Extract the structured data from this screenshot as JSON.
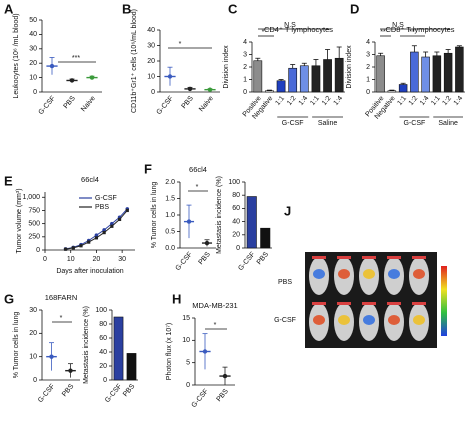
{
  "chart_data": [
    {
      "panel": "A",
      "type": "dot",
      "ylabel": "Leukocytes (10⁶ /mL blood)",
      "categories": [
        "G-CSF",
        "PBS",
        "Naive"
      ],
      "values": [
        18,
        8,
        10
      ],
      "errors": [
        6,
        1,
        1
      ],
      "colors": [
        "#3a5bbf",
        "#222222",
        "#3a9a3a"
      ],
      "ylim": [
        0,
        50
      ],
      "yticks": [
        0,
        10,
        20,
        30,
        40,
        50
      ],
      "annotations": [
        "***"
      ]
    },
    {
      "panel": "B",
      "type": "dot",
      "ylabel": "CD11b⁺Gr1⁺ cells (10⁶/mL blood)",
      "categories": [
        "G-CSF",
        "PBS",
        "Naive"
      ],
      "values": [
        10,
        2,
        1.5
      ],
      "errors": [
        6,
        1,
        0.5
      ],
      "colors": [
        "#3a5bbf",
        "#222222",
        "#3a9a3a"
      ],
      "ylim": [
        0,
        40
      ],
      "yticks": [
        0,
        10,
        20,
        30,
        40
      ],
      "annotations": [
        "*"
      ]
    },
    {
      "panel": "C",
      "type": "bar",
      "title": "CD4⁺ T lymphocytes",
      "ylabel": "Division index",
      "categories": [
        "Positive",
        "Negative",
        "1:1",
        "1:2",
        "1:4",
        "1:1",
        "1:2",
        "1:4"
      ],
      "values": [
        2.5,
        0.1,
        0.9,
        1.9,
        2.1,
        2.1,
        2.6,
        2.7
      ],
      "errors": [
        0.2,
        0.05,
        0.1,
        0.3,
        0.2,
        0.5,
        0.8,
        0.9
      ],
      "colors": [
        "#8c8c8c",
        "#ffffff",
        "#1f3fbf",
        "#4a6ad8",
        "#6f8fe6",
        "#222222",
        "#222222",
        "#222222"
      ],
      "groups": [
        "G-CSF",
        "Saline"
      ],
      "ylim": [
        0,
        4
      ],
      "yticks": [
        0,
        1,
        2,
        3,
        4
      ],
      "annotations": [
        "N.S",
        "*"
      ]
    },
    {
      "panel": "D",
      "type": "bar",
      "title": "CD8⁺ T lymphocytes",
      "ylabel": "Division index",
      "categories": [
        "Positive",
        "Negative",
        "1:1",
        "1:2",
        "1:4",
        "1:1",
        "1:2",
        "1:4"
      ],
      "values": [
        2.9,
        0.1,
        0.6,
        3.2,
        2.8,
        2.9,
        3.1,
        3.6
      ],
      "errors": [
        0.2,
        0.05,
        0.1,
        0.5,
        0.4,
        0.3,
        0.3,
        0.1
      ],
      "colors": [
        "#8c8c8c",
        "#ffffff",
        "#1f3fbf",
        "#4a6ad8",
        "#6f8fe6",
        "#222222",
        "#222222",
        "#222222"
      ],
      "groups": [
        "G-CSF",
        "Saline"
      ],
      "ylim": [
        0,
        4
      ],
      "yticks": [
        0,
        1,
        2,
        3,
        4
      ],
      "annotations": [
        "N.S",
        "**",
        "**"
      ]
    },
    {
      "panel": "E",
      "type": "line",
      "title": "66cl4",
      "ylabel": "Tumor volume (mm³)",
      "xlabel": "Days after inoculation",
      "x": [
        8,
        11,
        14,
        17,
        20,
        23,
        26,
        29,
        32
      ],
      "series": [
        {
          "name": "G-CSF",
          "color": "#2a3fa0",
          "values": [
            20,
            50,
            100,
            180,
            280,
            380,
            500,
            620,
            780
          ]
        },
        {
          "name": "PBS",
          "color": "#222222",
          "values": [
            15,
            40,
            80,
            150,
            230,
            330,
            450,
            580,
            750
          ]
        }
      ],
      "xlim": [
        0,
        35
      ],
      "xticks": [
        0,
        10,
        20,
        30
      ],
      "ylim": [
        0,
        1100
      ],
      "yticks": [
        0,
        250,
        500,
        750,
        {
          "value": 1000,
          "label": "1,000"
        }
      ]
    },
    {
      "panel": "F",
      "type": "dot",
      "title": "66cl4",
      "ylabel": "% Tumor cells in lung",
      "categories": [
        "G-CSF",
        "PBS"
      ],
      "values": [
        0.8,
        0.15
      ],
      "errors": [
        0.5,
        0.1
      ],
      "colors": [
        "#3a5bbf",
        "#222222"
      ],
      "ylim": [
        0,
        2
      ],
      "yticks": [
        {
          "value": 0,
          "label": "0.0"
        },
        {
          "value": 0.5,
          "label": "0.5"
        },
        {
          "value": 1,
          "label": "1.0"
        },
        {
          "value": 1.5,
          "label": "1.5"
        },
        {
          "value": 2,
          "label": "2.0"
        }
      ],
      "annotations": [
        "*"
      ]
    },
    {
      "type": "bar",
      "ylabel": "Metastasis incidence (%)",
      "categories": [
        "G-CSF",
        "PBS"
      ],
      "values": [
        78,
        30
      ],
      "colors": [
        "#2a3fa0",
        "#111111"
      ],
      "ylim": [
        0,
        100
      ],
      "yticks": [
        0,
        20,
        40,
        60,
        80,
        100
      ]
    },
    {
      "panel": "G",
      "type": "dot",
      "title": "168FARN",
      "ylabel": "% Tumor cells in lung",
      "categories": [
        "G-CSF",
        "PBS"
      ],
      "values": [
        10,
        4
      ],
      "errors": [
        6,
        3
      ],
      "colors": [
        "#3a5bbf",
        "#222222"
      ],
      "ylim": [
        0,
        30
      ],
      "yticks": [
        0,
        10,
        20,
        30
      ],
      "annotations": [
        "*"
      ]
    },
    {
      "type": "bar",
      "ylabel": "Metastasis incidence (%)",
      "categories": [
        "G-CSF",
        "PBS"
      ],
      "values": [
        90,
        38
      ],
      "colors": [
        "#2a3fa0",
        "#111111"
      ],
      "ylim": [
        0,
        100
      ],
      "yticks": [
        0,
        20,
        40,
        60,
        80,
        100
      ]
    },
    {
      "panel": "H",
      "type": "dot",
      "title": "MDA-MB-231",
      "ylabel": "Photon flux (x 10⁷)",
      "categories": [
        "G-CSF",
        "PBS"
      ],
      "values": [
        7.5,
        2
      ],
      "errors": [
        4,
        2
      ],
      "colors": [
        "#3a5bbf",
        "#222222"
      ],
      "ylim": [
        0,
        15
      ],
      "yticks": [
        0,
        5,
        10,
        15
      ],
      "annotations": [
        "*"
      ]
    },
    {
      "panel": "J",
      "type": "image",
      "rows": [
        "PBS",
        "G-CSF"
      ]
    }
  ]
}
